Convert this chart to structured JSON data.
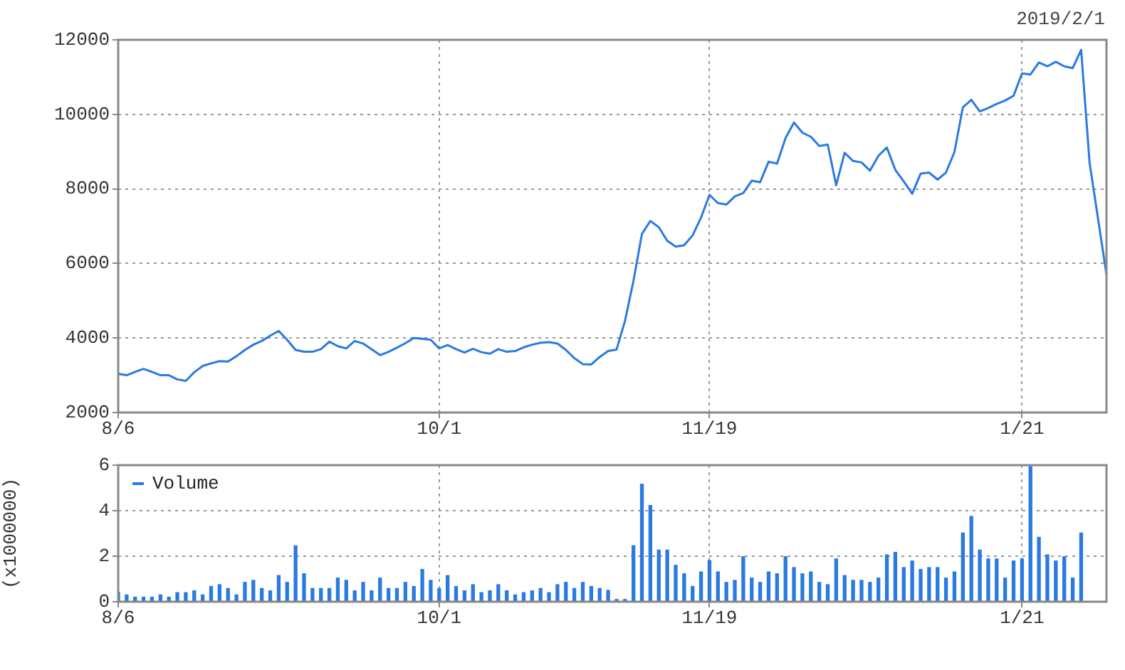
{
  "chart_data": [
    {
      "type": "line",
      "categories": [
        "8/6",
        null,
        null,
        null,
        null,
        null,
        null,
        null,
        null,
        null,
        null,
        null,
        null,
        null,
        null,
        null,
        null,
        null,
        null,
        null,
        null,
        null,
        null,
        null,
        null,
        null,
        null,
        null,
        null,
        null,
        null,
        null,
        null,
        null,
        null,
        null,
        null,
        null,
        "10/1",
        null,
        null,
        null,
        null,
        null,
        null,
        null,
        null,
        null,
        null,
        null,
        null,
        null,
        null,
        null,
        null,
        null,
        null,
        null,
        null,
        null,
        null,
        null,
        null,
        null,
        null,
        null,
        null,
        null,
        null,
        null,
        "11/19",
        null,
        null,
        null,
        null,
        null,
        null,
        null,
        null,
        null,
        null,
        null,
        null,
        null,
        null,
        null,
        null,
        null,
        null,
        null,
        null,
        null,
        null,
        null,
        null,
        null,
        null,
        null,
        null,
        null,
        null,
        null,
        null,
        null,
        null,
        null,
        null,
        "1/21",
        null,
        null,
        null,
        null,
        null,
        null,
        null,
        null,
        null,
        null
      ],
      "series": [
        {
          "color": "#2a7ae2",
          "values": [
            3040,
            3000,
            3090,
            3170,
            3090,
            3000,
            3000,
            2890,
            2850,
            3080,
            3250,
            3320,
            3380,
            3370,
            3510,
            3680,
            3820,
            3920,
            4060,
            4190,
            3950,
            3680,
            3630,
            3630,
            3700,
            3900,
            3780,
            3720,
            3920,
            3850,
            3700,
            3540,
            3630,
            3740,
            3860,
            4000,
            3980,
            3950,
            3720,
            3810,
            3700,
            3610,
            3710,
            3620,
            3580,
            3700,
            3630,
            3650,
            3750,
            3820,
            3870,
            3890,
            3850,
            3680,
            3460,
            3300,
            3290,
            3490,
            3650,
            3690,
            4460,
            5530,
            6790,
            7140,
            6970,
            6610,
            6450,
            6490,
            6750,
            7230,
            7840,
            7620,
            7580,
            7800,
            7890,
            8220,
            8180,
            8730,
            8680,
            9360,
            9780,
            9510,
            9400,
            9150,
            9190,
            8100,
            8970,
            8750,
            8710,
            8490,
            8890,
            9110,
            8510,
            8200,
            7870,
            8410,
            8440,
            8250,
            8440,
            8990,
            10190,
            10390,
            10080,
            10170,
            10280,
            10370,
            10500,
            11100,
            11070,
            11390,
            11290,
            11410,
            11290,
            11240,
            11730,
            8700,
            7200,
            5700
          ]
        }
      ],
      "ylim": [
        2000,
        12000
      ],
      "yticks": [
        2000,
        4000,
        6000,
        8000,
        10000,
        12000
      ],
      "grid": true,
      "marker": "none",
      "line_style": "solid",
      "annotations": [
        "2019/2/1"
      ]
    },
    {
      "type": "bar",
      "categories": [
        "8/6",
        null,
        null,
        null,
        null,
        null,
        null,
        null,
        null,
        null,
        null,
        null,
        null,
        null,
        null,
        null,
        null,
        null,
        null,
        null,
        null,
        null,
        null,
        null,
        null,
        null,
        null,
        null,
        null,
        null,
        null,
        null,
        null,
        null,
        null,
        null,
        null,
        null,
        "10/1",
        null,
        null,
        null,
        null,
        null,
        null,
        null,
        null,
        null,
        null,
        null,
        null,
        null,
        null,
        null,
        null,
        null,
        null,
        null,
        null,
        null,
        null,
        null,
        null,
        null,
        null,
        null,
        null,
        null,
        null,
        null,
        "11/19",
        null,
        null,
        null,
        null,
        null,
        null,
        null,
        null,
        null,
        null,
        null,
        null,
        null,
        null,
        null,
        null,
        null,
        null,
        null,
        null,
        null,
        null,
        null,
        null,
        null,
        null,
        null,
        null,
        null,
        null,
        null,
        null,
        null,
        null,
        null,
        null,
        "1/21",
        null,
        null,
        null,
        null,
        null,
        null,
        null,
        null,
        null,
        null
      ],
      "series": [
        {
          "name": "Volume",
          "color": "#2a7ae2",
          "values": [
            0.42,
            0.3,
            0.2,
            0.2,
            0.2,
            0.3,
            0.2,
            0.4,
            0.4,
            0.48,
            0.3,
            0.67,
            0.75,
            0.58,
            0.3,
            0.85,
            0.94,
            0.58,
            0.48,
            1.15,
            0.85,
            2.46,
            1.23,
            0.58,
            0.58,
            0.58,
            1.04,
            0.94,
            0.48,
            0.85,
            0.48,
            1.04,
            0.58,
            0.58,
            0.85,
            0.67,
            1.42,
            0.94,
            0.58,
            1.15,
            0.67,
            0.48,
            0.75,
            0.4,
            0.48,
            0.75,
            0.48,
            0.3,
            0.4,
            0.48,
            0.58,
            0.4,
            0.75,
            0.85,
            0.58,
            0.85,
            0.67,
            0.58,
            0.5,
            0.1,
            0.1,
            2.46,
            5.17,
            4.23,
            2.27,
            2.27,
            1.6,
            1.23,
            0.67,
            1.31,
            1.81,
            1.31,
            0.85,
            0.94,
            1.98,
            1.04,
            0.85,
            1.31,
            1.23,
            1.98,
            1.5,
            1.23,
            1.31,
            0.85,
            0.75,
            1.88,
            1.15,
            0.94,
            0.94,
            0.85,
            1.04,
            2.06,
            2.17,
            1.5,
            1.79,
            1.42,
            1.5,
            1.5,
            1.04,
            1.31,
            3.02,
            3.75,
            2.27,
            1.88,
            1.88,
            1.04,
            1.79,
            1.88,
            5.94,
            2.83,
            2.06,
            1.79,
            1.98,
            1.04,
            3.02,
            0,
            0,
            0
          ]
        }
      ],
      "ylabel": "(x1000000)",
      "ylim": [
        0,
        6
      ],
      "yticks": [
        0,
        2,
        4,
        6
      ],
      "grid": true,
      "legend": "top left"
    }
  ]
}
